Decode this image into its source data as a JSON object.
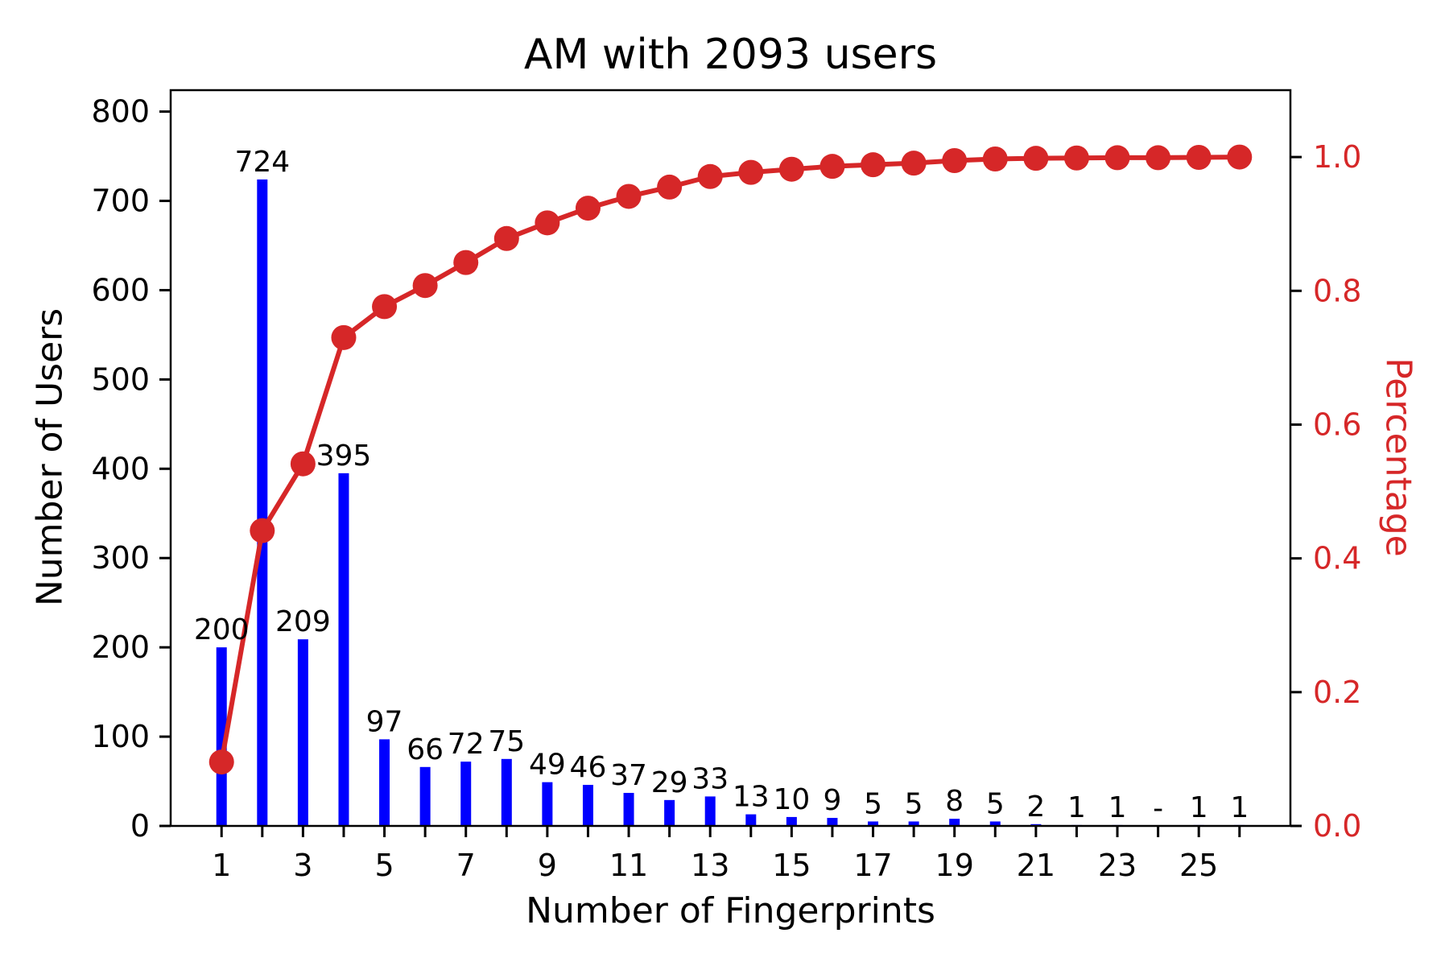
{
  "chart": {
    "title": "AM with 2093 users",
    "xlabel": "Number of Fingerprints",
    "ylabel_left": "Number of Users",
    "ylabel_right": "Percentage"
  },
  "chart_data": {
    "type": "bar",
    "subtype": "pareto-bar-with-cumulative-line",
    "title": "AM with 2093 users",
    "xlabel": "Number of Fingerprints",
    "ylabel_left": "Number of Users",
    "ylabel_right": "Percentage",
    "total_users": 2093,
    "x": [
      1,
      2,
      3,
      4,
      5,
      6,
      7,
      8,
      9,
      10,
      11,
      12,
      13,
      14,
      15,
      16,
      17,
      18,
      19,
      20,
      21,
      22,
      23,
      24,
      25,
      26
    ],
    "series": [
      {
        "name": "Number of Users",
        "type": "bar",
        "axis": "left",
        "color": "#0000ff",
        "values": [
          200,
          724,
          209,
          395,
          97,
          66,
          72,
          75,
          49,
          46,
          37,
          29,
          33,
          13,
          10,
          9,
          5,
          5,
          8,
          5,
          2,
          1,
          1,
          0,
          1,
          1
        ],
        "value_labels": [
          "200",
          "724",
          "209",
          "395",
          "97",
          "66",
          "72",
          "75",
          "49",
          "46",
          "37",
          "29",
          "33",
          "13",
          "10",
          "9",
          "5",
          "5",
          "8",
          "5",
          "2",
          "1",
          "1",
          "-",
          "1",
          "1"
        ]
      },
      {
        "name": "Cumulative Percentage",
        "type": "line",
        "axis": "right",
        "color": "#d62728",
        "values": [
          0.0956,
          0.4415,
          0.5413,
          0.7301,
          0.7764,
          0.8079,
          0.8423,
          0.8782,
          0.9016,
          0.9236,
          0.9412,
          0.9551,
          0.9709,
          0.9771,
          0.9818,
          0.9861,
          0.9885,
          0.9909,
          0.9947,
          0.9971,
          0.9981,
          0.9986,
          0.999,
          0.999,
          0.9995,
          1.0
        ]
      }
    ],
    "x_tick_labels": [
      "1",
      "3",
      "5",
      "7",
      "9",
      "11",
      "13",
      "15",
      "17",
      "19",
      "21",
      "23",
      "25"
    ],
    "y_tick_labels_left": [
      "0",
      "100",
      "200",
      "300",
      "400",
      "500",
      "600",
      "700",
      "800"
    ],
    "y_tick_labels_right": [
      "0.0",
      "0.2",
      "0.4",
      "0.6",
      "0.8",
      "1.0"
    ],
    "xlim": [
      -0.25,
      27.25
    ],
    "ylim_left": [
      0,
      824
    ],
    "ylim_right": [
      0,
      1.1
    ],
    "grid": false,
    "legend": "none",
    "colors": {
      "bar": "#0000ff",
      "line": "#d62728",
      "right_axis_text": "#d62728",
      "axis_text": "#000000",
      "spine": "#000000",
      "background": "#ffffff"
    }
  }
}
